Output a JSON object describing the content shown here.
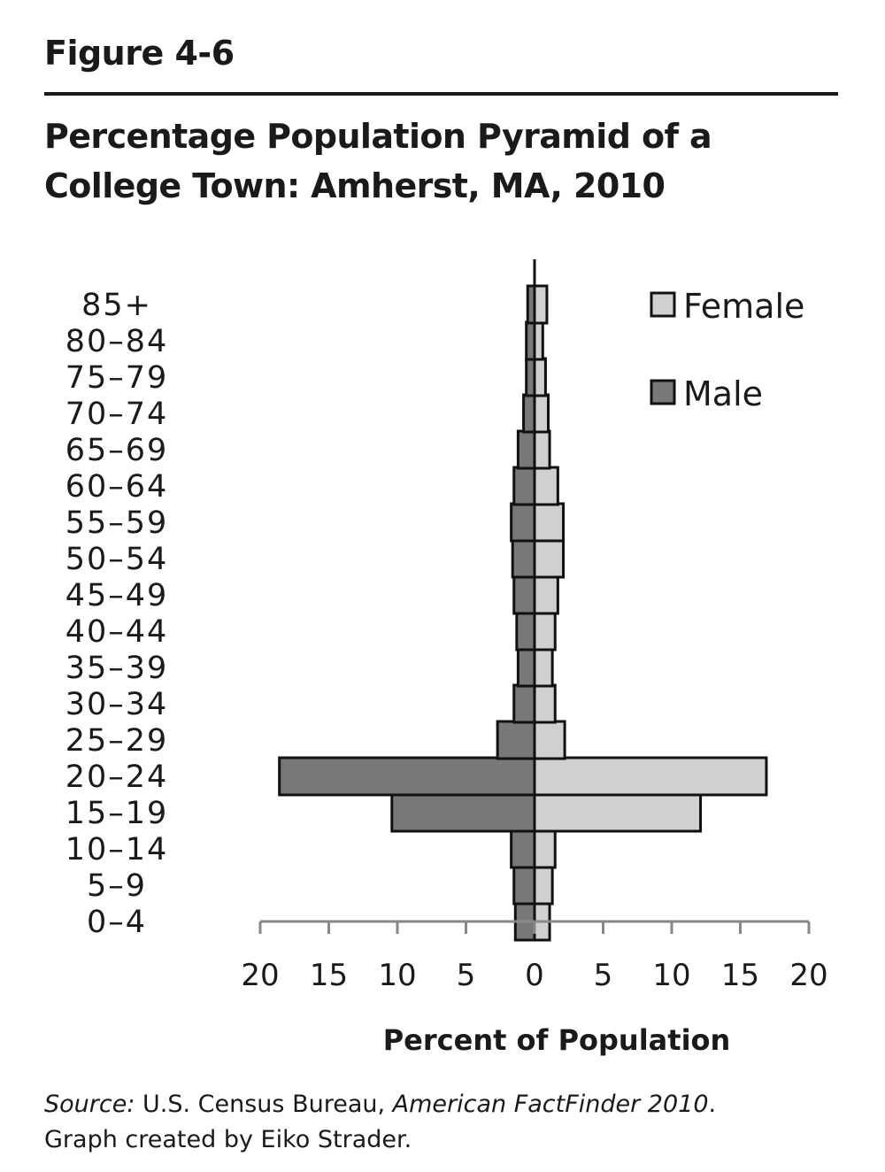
{
  "figure_label": "Figure 4-6",
  "title_line1": "Percentage Population Pyramid of a",
  "title_line2": "College Town: Amherst, MA, 2010",
  "source": {
    "label": "Source:",
    "org": " U.S. Census Bureau, ",
    "publication": "American FactFinder 2010",
    "period": ".",
    "credit": "Graph created by Eiko Strader."
  },
  "chart_data": {
    "type": "bar",
    "orientation": "horizontal-pyramid",
    "title": "Percentage Population Pyramid of a College Town: Amherst, MA, 2010",
    "xlabel": "Percent of Population",
    "ylabel": "",
    "xlim": [
      -20,
      20
    ],
    "x_ticks": [
      -20,
      -15,
      -10,
      -5,
      0,
      5,
      10,
      15,
      20
    ],
    "x_tick_labels": [
      "20",
      "15",
      "10",
      "5",
      "0",
      "5",
      "10",
      "15",
      "20"
    ],
    "categories": [
      "0–4",
      "5–9",
      "10–14",
      "15–19",
      "20–24",
      "25–29",
      "30–34",
      "35–39",
      "40–44",
      "45–49",
      "50–54",
      "55–59",
      "60–64",
      "65–69",
      "70–74",
      "75–79",
      "80–84",
      "85+"
    ],
    "legend_position": "top-right",
    "grid": false,
    "series": [
      {
        "name": "Female",
        "color": "#d0d0d0",
        "values": [
          1.1,
          1.3,
          1.5,
          12.1,
          16.9,
          2.2,
          1.5,
          1.3,
          1.5,
          1.7,
          2.1,
          2.1,
          1.7,
          1.1,
          1.0,
          0.8,
          0.6,
          0.9
        ]
      },
      {
        "name": "Male",
        "color": "#787878",
        "values": [
          1.4,
          1.5,
          1.7,
          10.4,
          18.6,
          2.7,
          1.5,
          1.2,
          1.3,
          1.5,
          1.6,
          1.7,
          1.5,
          1.2,
          0.8,
          0.6,
          0.6,
          0.5
        ]
      }
    ]
  }
}
